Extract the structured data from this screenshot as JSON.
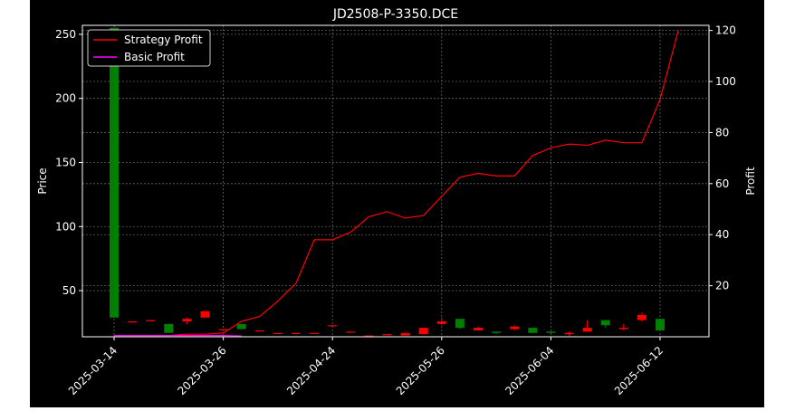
{
  "chart_data": {
    "type": "candlestick+line",
    "title": "JD2508-P-3350.DCE",
    "ylabel_left": "Price",
    "ylabel_right": "Profit",
    "grid": true,
    "legend_position": "top-left",
    "background": "#000000",
    "colors": {
      "strategy_profit": "#ff0000",
      "basic_profit": "#ff00ff",
      "candle_up": "#ff0000",
      "candle_down": "#008000",
      "grid": "#666666",
      "text": "#ffffff"
    },
    "left_axis": {
      "ylim": [
        14,
        257
      ],
      "ticks": [
        50,
        100,
        150,
        200,
        250
      ]
    },
    "right_axis": {
      "ylim": [
        0,
        122
      ],
      "ticks": [
        20,
        40,
        60,
        80,
        100,
        120
      ]
    },
    "x_tick_labels": [
      "2025-03-14",
      "2025-03-26",
      "2025-04-24",
      "2025-05-26",
      "2025-06-04",
      "2025-06-12"
    ],
    "x_tick_index": [
      0,
      6,
      12,
      18,
      24,
      30
    ],
    "candles": [
      {
        "o": 255,
        "h": 255,
        "l": 29,
        "c": 29
      },
      {
        "o": 26,
        "h": 26,
        "l": 25,
        "c": 26
      },
      {
        "o": 27,
        "h": 27,
        "l": 26,
        "c": 27
      },
      {
        "o": 24,
        "h": 24,
        "l": 17,
        "c": 17
      },
      {
        "o": 26,
        "h": 29,
        "l": 24,
        "c": 28
      },
      {
        "o": 29,
        "h": 34,
        "l": 29,
        "c": 34
      },
      {
        "o": 20,
        "h": 20,
        "l": 19,
        "c": 20
      },
      {
        "o": 24,
        "h": 24,
        "l": 20,
        "c": 20
      },
      {
        "o": 19,
        "h": 19,
        "l": 19,
        "c": 19
      },
      {
        "o": 17,
        "h": 17,
        "l": 17,
        "c": 17
      },
      {
        "o": 17,
        "h": 17,
        "l": 17,
        "c": 17
      },
      {
        "o": 17,
        "h": 17,
        "l": 17,
        "c": 17
      },
      {
        "o": 23,
        "h": 23,
        "l": 23,
        "c": 23
      },
      {
        "o": 18,
        "h": 18,
        "l": 18,
        "c": 18
      },
      {
        "o": 15,
        "h": 15,
        "l": 15,
        "c": 15
      },
      {
        "o": 16,
        "h": 16,
        "l": 16,
        "c": 16
      },
      {
        "o": 15,
        "h": 17,
        "l": 15,
        "c": 17
      },
      {
        "o": 16,
        "h": 21,
        "l": 16,
        "c": 21
      },
      {
        "o": 24,
        "h": 29,
        "l": 23,
        "c": 26
      },
      {
        "o": 28,
        "h": 28,
        "l": 20,
        "c": 21
      },
      {
        "o": 19,
        "h": 22,
        "l": 19,
        "c": 21
      },
      {
        "o": 18,
        "h": 18,
        "l": 16,
        "c": 17
      },
      {
        "o": 20,
        "h": 23,
        "l": 19,
        "c": 22
      },
      {
        "o": 21,
        "h": 21,
        "l": 17,
        "c": 17
      },
      {
        "o": 18,
        "h": 18,
        "l": 17,
        "c": 17
      },
      {
        "o": 16,
        "h": 18,
        "l": 15,
        "c": 17
      },
      {
        "o": 18,
        "h": 27,
        "l": 18,
        "c": 21
      },
      {
        "o": 27,
        "h": 27,
        "l": 21,
        "c": 23
      },
      {
        "o": 20,
        "h": 24,
        "l": 19,
        "c": 21
      },
      {
        "o": 27,
        "h": 33,
        "l": 26,
        "c": 31
      },
      {
        "o": 28,
        "h": 28,
        "l": 19,
        "c": 19
      }
    ],
    "series": [
      {
        "name": "Strategy Profit",
        "color": "#ff0000",
        "x_index": [
          0,
          1,
          2,
          3,
          4,
          5,
          6,
          7,
          8,
          9,
          10,
          11,
          12,
          13,
          14,
          15,
          16,
          17,
          18,
          19,
          20,
          21,
          22,
          23,
          24,
          25,
          26,
          27,
          28,
          29,
          30,
          31
        ],
        "values": [
          0.5,
          0.5,
          0.5,
          0.5,
          1,
          1,
          1.5,
          6,
          8,
          14,
          21,
          38,
          38,
          41,
          47,
          49,
          46.5,
          47.5,
          55,
          62.5,
          64,
          63,
          63,
          71,
          74,
          75.5,
          75,
          77,
          76,
          76,
          93,
          120
        ]
      },
      {
        "name": "Basic Profit",
        "color": "#ff00ff",
        "x_index": [
          0,
          1,
          2,
          3,
          4,
          5,
          6,
          7
        ],
        "values": [
          0.5,
          0.5,
          0.5,
          0.5,
          0.5,
          0.5,
          0.5,
          0.3
        ]
      }
    ]
  }
}
